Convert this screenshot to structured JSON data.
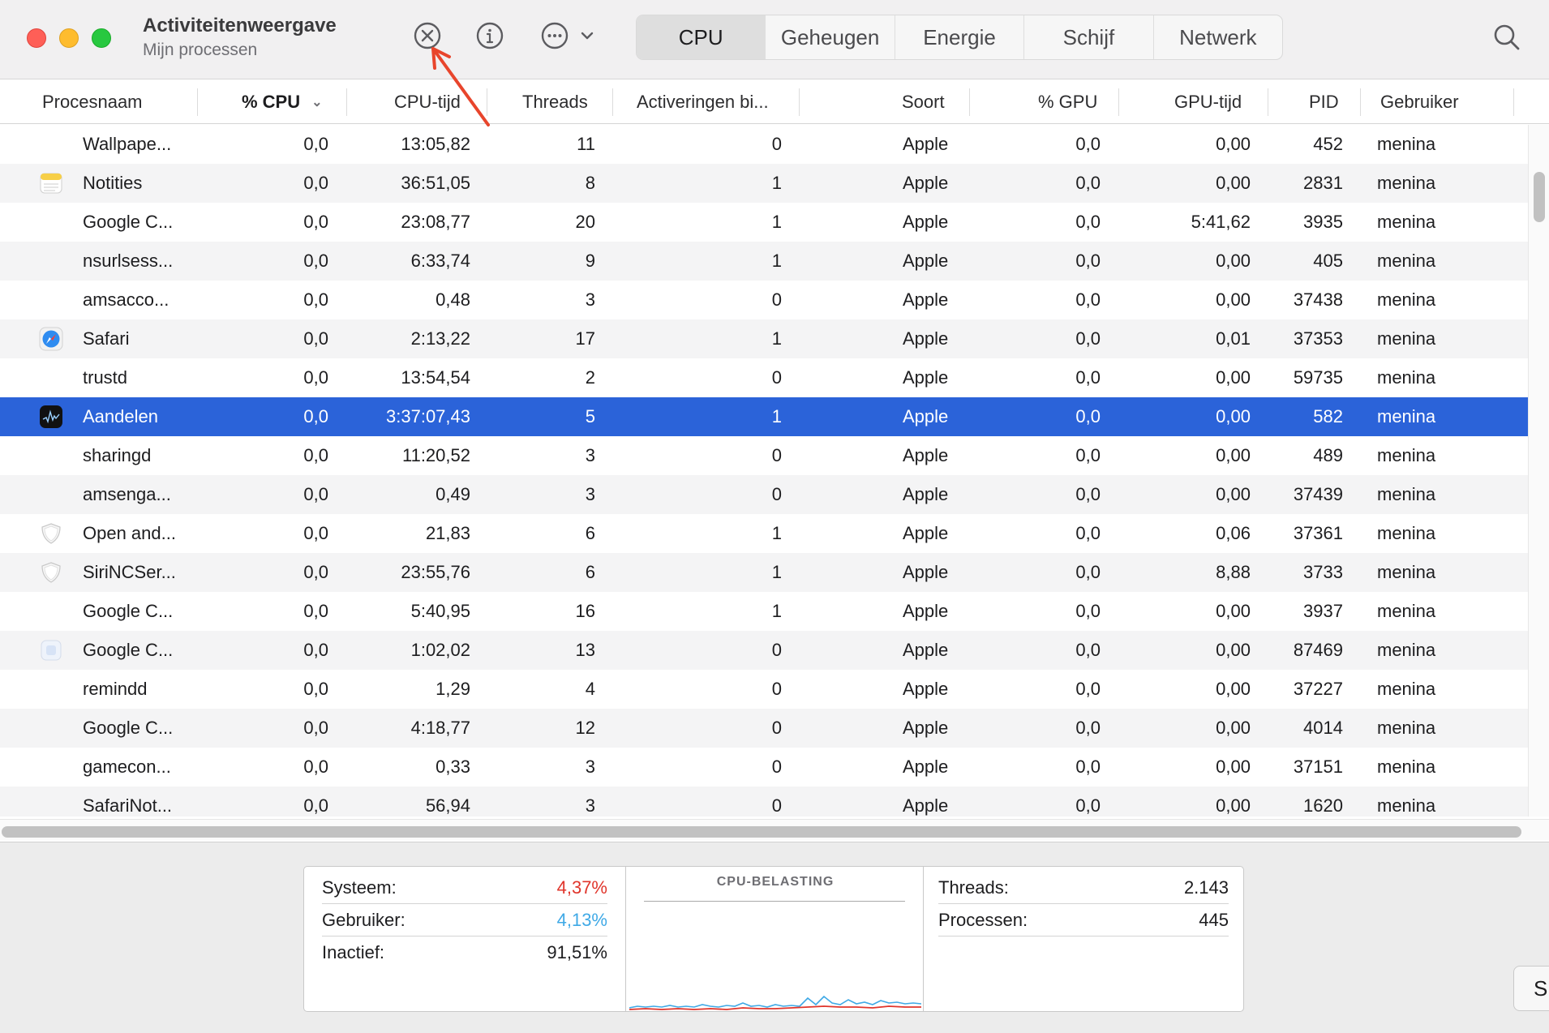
{
  "window": {
    "title": "Activiteitenweergave",
    "subtitle": "Mijn processen"
  },
  "toolbar": {
    "stop_icon": "xmark-circle-icon",
    "info_icon": "info-circle-icon",
    "more_icon": "ellipsis-circle-icon",
    "search_icon": "magnifying-glass-icon"
  },
  "tabs": [
    {
      "label": "CPU",
      "active": true
    },
    {
      "label": "Geheugen",
      "active": false
    },
    {
      "label": "Energie",
      "active": false
    },
    {
      "label": "Schijf",
      "active": false
    },
    {
      "label": "Netwerk",
      "active": false
    }
  ],
  "columns": {
    "name": "Procesnaam",
    "cpu": "% CPU",
    "cpu_time": "CPU-tijd",
    "threads": "Threads",
    "wakeups": "Activeringen bi...",
    "kind": "Soort",
    "gpu": "% GPU",
    "gpu_time": "GPU-tijd",
    "pid": "PID",
    "user": "Gebruiker"
  },
  "rows": [
    {
      "icon": "none",
      "name": "Wallpape...",
      "cpu": "0,0",
      "cpu_time": "13:05,82",
      "threads": "11",
      "wakeups": "0",
      "kind": "Apple",
      "gpu": "0,0",
      "gpu_time": "0,00",
      "pid": "452",
      "user": "menina"
    },
    {
      "icon": "notes-icon",
      "name": "Notities",
      "cpu": "0,0",
      "cpu_time": "36:51,05",
      "threads": "8",
      "wakeups": "1",
      "kind": "Apple",
      "gpu": "0,0",
      "gpu_time": "0,00",
      "pid": "2831",
      "user": "menina"
    },
    {
      "icon": "none",
      "name": "Google C...",
      "cpu": "0,0",
      "cpu_time": "23:08,77",
      "threads": "20",
      "wakeups": "1",
      "kind": "Apple",
      "gpu": "0,0",
      "gpu_time": "5:41,62",
      "pid": "3935",
      "user": "menina"
    },
    {
      "icon": "none",
      "name": "nsurlsess...",
      "cpu": "0,0",
      "cpu_time": "6:33,74",
      "threads": "9",
      "wakeups": "1",
      "kind": "Apple",
      "gpu": "0,0",
      "gpu_time": "0,00",
      "pid": "405",
      "user": "menina"
    },
    {
      "icon": "none",
      "name": "amsacco...",
      "cpu": "0,0",
      "cpu_time": "0,48",
      "threads": "3",
      "wakeups": "0",
      "kind": "Apple",
      "gpu": "0,0",
      "gpu_time": "0,00",
      "pid": "37438",
      "user": "menina"
    },
    {
      "icon": "safari-icon",
      "name": "Safari",
      "cpu": "0,0",
      "cpu_time": "2:13,22",
      "threads": "17",
      "wakeups": "1",
      "kind": "Apple",
      "gpu": "0,0",
      "gpu_time": "0,01",
      "pid": "37353",
      "user": "menina"
    },
    {
      "icon": "none",
      "name": "trustd",
      "cpu": "0,0",
      "cpu_time": "13:54,54",
      "threads": "2",
      "wakeups": "0",
      "kind": "Apple",
      "gpu": "0,0",
      "gpu_time": "0,00",
      "pid": "59735",
      "user": "menina"
    },
    {
      "icon": "stocks-icon",
      "name": "Aandelen",
      "cpu": "0,0",
      "cpu_time": "3:37:07,43",
      "threads": "5",
      "wakeups": "1",
      "kind": "Apple",
      "gpu": "0,0",
      "gpu_time": "0,00",
      "pid": "582",
      "user": "menina",
      "selected": true
    },
    {
      "icon": "none",
      "name": "sharingd",
      "cpu": "0,0",
      "cpu_time": "11:20,52",
      "threads": "3",
      "wakeups": "0",
      "kind": "Apple",
      "gpu": "0,0",
      "gpu_time": "0,00",
      "pid": "489",
      "user": "menina"
    },
    {
      "icon": "none",
      "name": "amsenga...",
      "cpu": "0,0",
      "cpu_time": "0,49",
      "threads": "3",
      "wakeups": "0",
      "kind": "Apple",
      "gpu": "0,0",
      "gpu_time": "0,00",
      "pid": "37439",
      "user": "menina"
    },
    {
      "icon": "shield-icon",
      "name": "Open and...",
      "cpu": "0,0",
      "cpu_time": "21,83",
      "threads": "6",
      "wakeups": "1",
      "kind": "Apple",
      "gpu": "0,0",
      "gpu_time": "0,06",
      "pid": "37361",
      "user": "menina"
    },
    {
      "icon": "shield-icon",
      "name": "SiriNCSer...",
      "cpu": "0,0",
      "cpu_time": "23:55,76",
      "threads": "6",
      "wakeups": "1",
      "kind": "Apple",
      "gpu": "0,0",
      "gpu_time": "8,88",
      "pid": "3733",
      "user": "menina"
    },
    {
      "icon": "none",
      "name": "Google C...",
      "cpu": "0,0",
      "cpu_time": "5:40,95",
      "threads": "16",
      "wakeups": "1",
      "kind": "Apple",
      "gpu": "0,0",
      "gpu_time": "0,00",
      "pid": "3937",
      "user": "menina"
    },
    {
      "icon": "app-generic-icon",
      "name": "Google C...",
      "cpu": "0,0",
      "cpu_time": "1:02,02",
      "threads": "13",
      "wakeups": "0",
      "kind": "Apple",
      "gpu": "0,0",
      "gpu_time": "0,00",
      "pid": "87469",
      "user": "menina"
    },
    {
      "icon": "none",
      "name": "remindd",
      "cpu": "0,0",
      "cpu_time": "1,29",
      "threads": "4",
      "wakeups": "0",
      "kind": "Apple",
      "gpu": "0,0",
      "gpu_time": "0,00",
      "pid": "37227",
      "user": "menina"
    },
    {
      "icon": "none",
      "name": "Google C...",
      "cpu": "0,0",
      "cpu_time": "4:18,77",
      "threads": "12",
      "wakeups": "0",
      "kind": "Apple",
      "gpu": "0,0",
      "gpu_time": "0,00",
      "pid": "4014",
      "user": "menina"
    },
    {
      "icon": "none",
      "name": "gamecon...",
      "cpu": "0,0",
      "cpu_time": "0,33",
      "threads": "3",
      "wakeups": "0",
      "kind": "Apple",
      "gpu": "0,0",
      "gpu_time": "0,00",
      "pid": "37151",
      "user": "menina"
    },
    {
      "icon": "none",
      "name": "SafariNot...",
      "cpu": "0,0",
      "cpu_time": "56,94",
      "threads": "3",
      "wakeups": "0",
      "kind": "Apple",
      "gpu": "0,0",
      "gpu_time": "0,00",
      "pid": "1620",
      "user": "menina"
    }
  ],
  "summary": {
    "system_label": "Systeem:",
    "system_value": "4,37%",
    "user_label": "Gebruiker:",
    "user_value": "4,13%",
    "idle_label": "Inactief:",
    "idle_value": "91,51%",
    "chart_title": "CPU-BELASTING",
    "threads_label": "Threads:",
    "threads_value": "2.143",
    "processes_label": "Processen:",
    "processes_value": "445",
    "edge_button": "S"
  },
  "colors": {
    "selection": "#2b63d9",
    "system": "#e0352b",
    "user": "#3fa9e6",
    "annotation_arrow": "#e8452c"
  }
}
